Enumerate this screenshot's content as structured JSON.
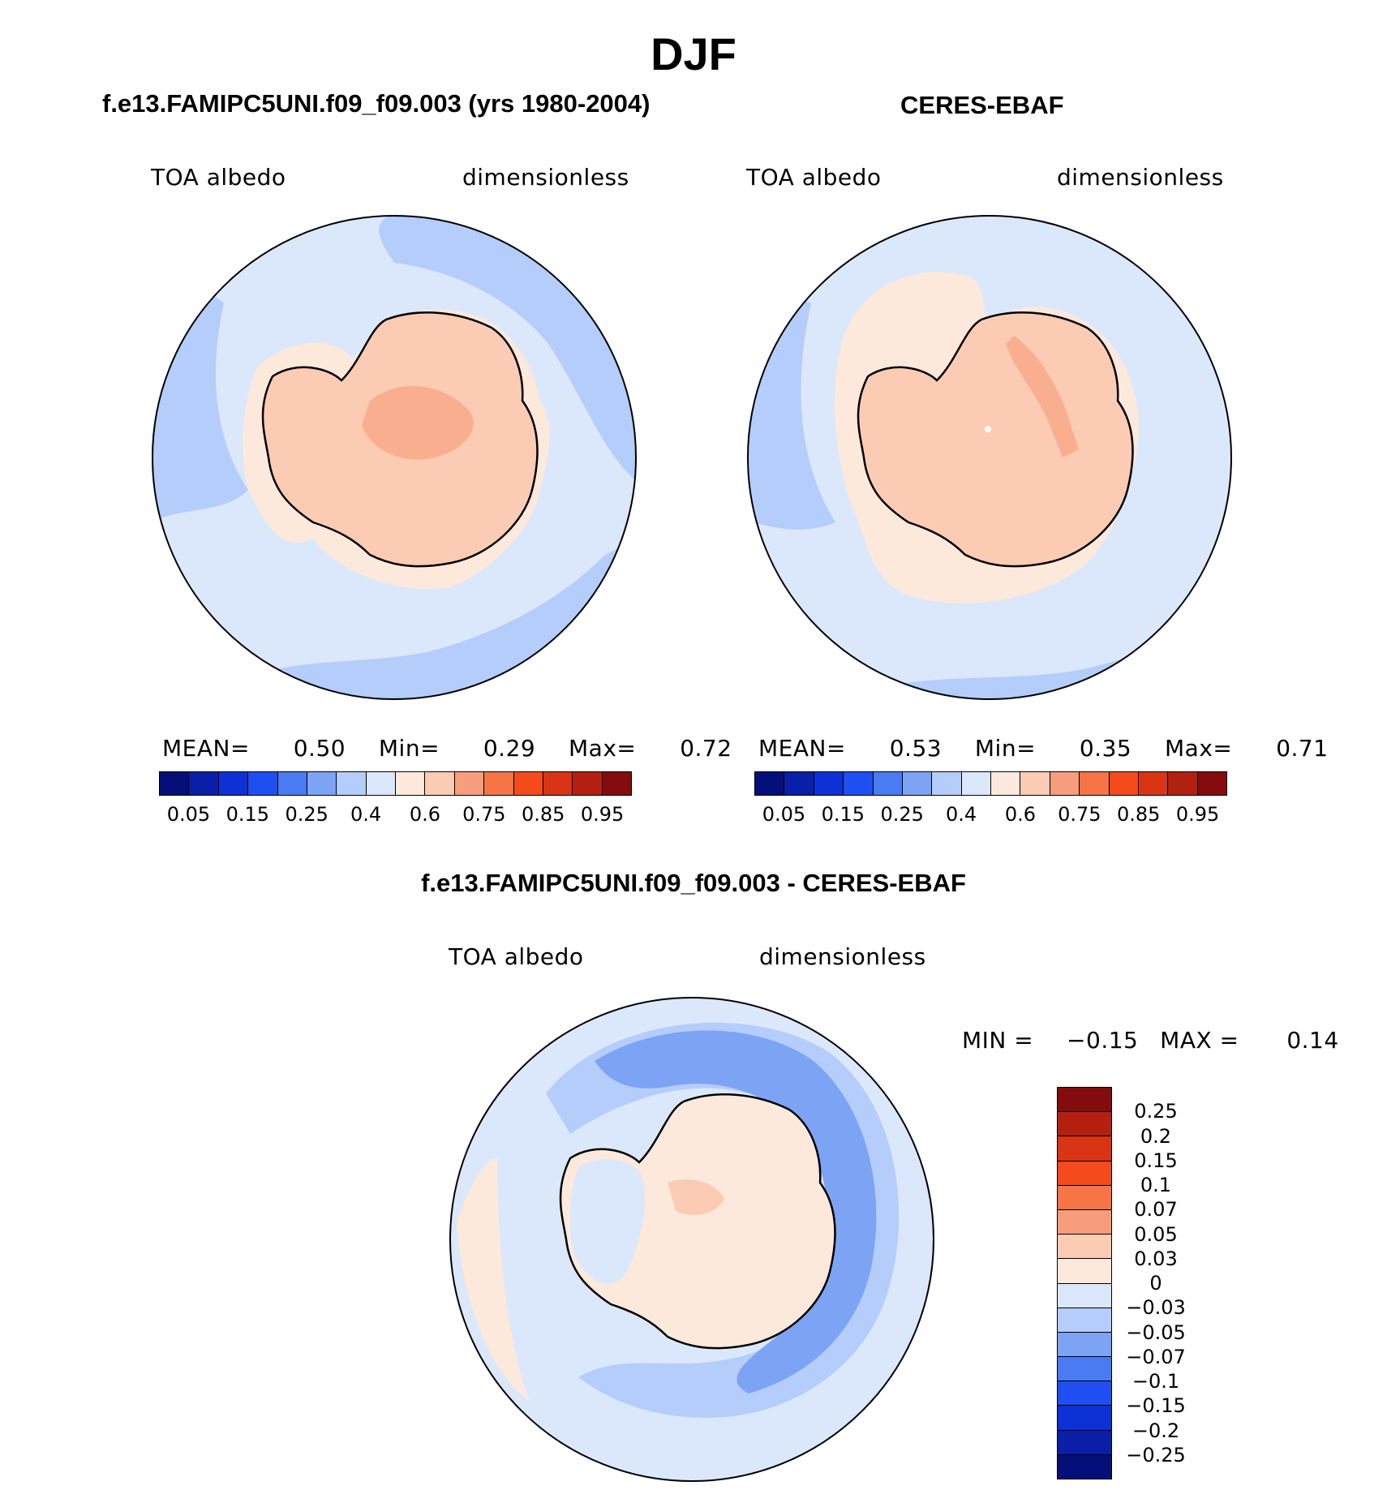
{
  "title": "DJF",
  "panels": {
    "model": {
      "title": "f.e13.FAMIPC5UNI.f09_f09.003 (yrs 1980-2004)",
      "variable": "TOA albedo",
      "units": "dimensionless",
      "mean_label": "MEAN=",
      "mean_value": "0.50",
      "min_label": "Min=",
      "min_value": "0.29",
      "max_label": "Max=",
      "max_value": "0.72"
    },
    "obs": {
      "title": "CERES-EBAF",
      "variable": "TOA albedo",
      "units": "dimensionless",
      "mean_label": "MEAN=",
      "mean_value": "0.53",
      "min_label": "Min=",
      "min_value": "0.35",
      "max_label": "Max=",
      "max_value": "0.71"
    },
    "diff": {
      "title": "f.e13.FAMIPC5UNI.f09_f09.003 - CERES-EBAF",
      "variable": "TOA albedo",
      "units": "dimensionless",
      "min_label": "MIN =",
      "min_value": "−0.15",
      "max_label": "MAX =",
      "max_value": "0.14"
    }
  },
  "colorbar_main": {
    "colors": [
      "#050f7a",
      "#0a1fa8",
      "#0d31d6",
      "#1f4ef2",
      "#4a7bf2",
      "#7da3f4",
      "#b4cdfb",
      "#dbe8fb",
      "#fde9dc",
      "#fbcbb3",
      "#f89d7c",
      "#f67446",
      "#f54a1c",
      "#d93414",
      "#b42010",
      "#850c0c"
    ],
    "tick_labels": [
      "0.05",
      "0.15",
      "0.25",
      "0.4",
      "0.6",
      "0.75",
      "0.85",
      "0.95"
    ]
  },
  "colorbar_diff": {
    "colors": [
      "#850c0c",
      "#b42010",
      "#d93414",
      "#f54a1c",
      "#f67446",
      "#f89d7c",
      "#fbcbb3",
      "#fde9dc",
      "#dbe8fb",
      "#b4cdfb",
      "#7da3f4",
      "#4a7bf2",
      "#1f4ef2",
      "#0d31d6",
      "#0a1fa8",
      "#050f7a"
    ],
    "tick_labels": [
      "0.25",
      "0.2",
      "0.15",
      "0.1",
      "0.07",
      "0.05",
      "0.03",
      "0",
      "−0.03",
      "−0.05",
      "−0.07",
      "−0.1",
      "−0.15",
      "−0.2",
      "−0.25"
    ]
  }
}
